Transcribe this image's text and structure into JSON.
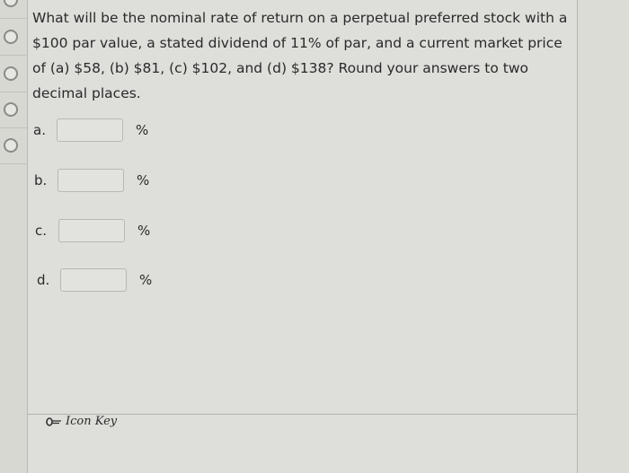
{
  "sidebar": {
    "items": [
      {
        "icon": "radio-circle"
      },
      {
        "icon": "radio-circle"
      },
      {
        "icon": "radio-circle"
      },
      {
        "icon": "radio-circle"
      },
      {
        "icon": "radio-circle"
      }
    ]
  },
  "question": {
    "text": "What will be the nominal rate of return on a perpetual preferred stock with a $100 par value, a stated dividend of 11% of par, and a current market price of (a) $58, (b) $81, (c) $102, and (d) $138? Round your answers to two decimal places."
  },
  "answers": [
    {
      "label": "a.",
      "value": "",
      "unit": "%"
    },
    {
      "label": "b.",
      "value": "",
      "unit": "%"
    },
    {
      "label": "c.",
      "value": "",
      "unit": "%"
    },
    {
      "label": "d.",
      "value": "",
      "unit": "%"
    }
  ],
  "footer": {
    "icon_key_label": "Icon Key",
    "icon": "key-icon"
  }
}
